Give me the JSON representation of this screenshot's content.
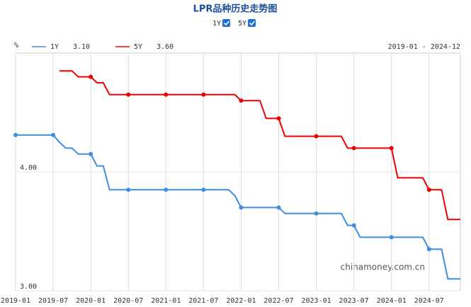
{
  "chart_data": {
    "type": "line",
    "title": "LPR品种历史走势图",
    "unit": "%",
    "range_label": "2019-01 - 2024-12",
    "watermark": "chinamoney.com.cn",
    "x": [
      "2019-01",
      "2019-02",
      "2019-03",
      "2019-04",
      "2019-05",
      "2019-06",
      "2019-07",
      "2019-08",
      "2019-09",
      "2019-10",
      "2019-11",
      "2019-12",
      "2020-01",
      "2020-02",
      "2020-03",
      "2020-04",
      "2020-05",
      "2020-06",
      "2020-07",
      "2020-08",
      "2020-09",
      "2020-10",
      "2020-11",
      "2020-12",
      "2021-01",
      "2021-02",
      "2021-03",
      "2021-04",
      "2021-05",
      "2021-06",
      "2021-07",
      "2021-08",
      "2021-09",
      "2021-10",
      "2021-11",
      "2021-12",
      "2022-01",
      "2022-02",
      "2022-03",
      "2022-04",
      "2022-05",
      "2022-06",
      "2022-07",
      "2022-08",
      "2022-09",
      "2022-10",
      "2022-11",
      "2022-12",
      "2023-01",
      "2023-02",
      "2023-03",
      "2023-04",
      "2023-05",
      "2023-06",
      "2023-07",
      "2023-08",
      "2023-09",
      "2023-10",
      "2023-11",
      "2023-12",
      "2024-01",
      "2024-02",
      "2024-03",
      "2024-04",
      "2024-05",
      "2024-06",
      "2024-07",
      "2024-08",
      "2024-09",
      "2024-10",
      "2024-11",
      "2024-12"
    ],
    "xticks": [
      "2019-01",
      "2019-07",
      "2020-01",
      "2020-07",
      "2021-01",
      "2021-07",
      "2022-01",
      "2022-07",
      "2023-01",
      "2023-07",
      "2024-01",
      "2024-07"
    ],
    "series": [
      {
        "name": "1Y",
        "color": "#3f8ee0",
        "latest": "3.10",
        "values": [
          4.31,
          4.31,
          4.31,
          4.31,
          4.31,
          4.31,
          4.31,
          4.25,
          4.2,
          4.2,
          4.15,
          4.15,
          4.15,
          4.05,
          4.05,
          3.85,
          3.85,
          3.85,
          3.85,
          3.85,
          3.85,
          3.85,
          3.85,
          3.85,
          3.85,
          3.85,
          3.85,
          3.85,
          3.85,
          3.85,
          3.85,
          3.85,
          3.85,
          3.85,
          3.85,
          3.8,
          3.7,
          3.7,
          3.7,
          3.7,
          3.7,
          3.7,
          3.7,
          3.65,
          3.65,
          3.65,
          3.65,
          3.65,
          3.65,
          3.65,
          3.65,
          3.65,
          3.65,
          3.55,
          3.55,
          3.45,
          3.45,
          3.45,
          3.45,
          3.45,
          3.45,
          3.45,
          3.45,
          3.45,
          3.45,
          3.45,
          3.35,
          3.35,
          3.35,
          3.1,
          3.1,
          3.1
        ]
      },
      {
        "name": "5Y",
        "color": "#f00000",
        "latest": "3.60",
        "values": [
          null,
          null,
          null,
          null,
          null,
          null,
          null,
          4.85,
          4.85,
          4.85,
          4.8,
          4.8,
          4.8,
          4.75,
          4.75,
          4.65,
          4.65,
          4.65,
          4.65,
          4.65,
          4.65,
          4.65,
          4.65,
          4.65,
          4.65,
          4.65,
          4.65,
          4.65,
          4.65,
          4.65,
          4.65,
          4.65,
          4.65,
          4.65,
          4.65,
          4.65,
          4.6,
          4.6,
          4.6,
          4.6,
          4.45,
          4.45,
          4.45,
          4.3,
          4.3,
          4.3,
          4.3,
          4.3,
          4.3,
          4.3,
          4.3,
          4.3,
          4.3,
          4.2,
          4.2,
          4.2,
          4.2,
          4.2,
          4.2,
          4.2,
          4.2,
          3.95,
          3.95,
          3.95,
          3.95,
          3.95,
          3.85,
          3.85,
          3.85,
          3.6,
          3.6,
          3.6
        ]
      }
    ],
    "ylim": [
      3.0,
      5.0
    ],
    "yticks": [
      {
        "value": 3,
        "label": "3.00"
      },
      {
        "value": 4,
        "label": "4.00"
      }
    ],
    "grid": true
  }
}
